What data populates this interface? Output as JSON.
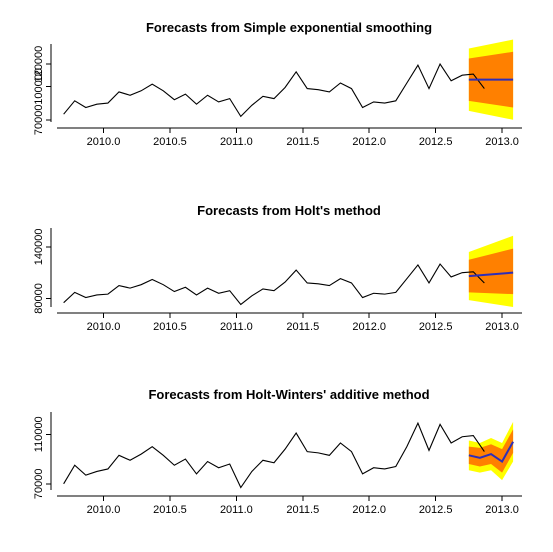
{
  "chart_data": [
    {
      "type": "line",
      "title": "Forecasts from Simple exponential smoothing",
      "xlabel": "",
      "ylabel": "",
      "xlim": [
        2009.65,
        2013.15
      ],
      "ylim": [
        68000,
        138000
      ],
      "x_ticks": [
        2010.0,
        2010.5,
        2011.0,
        2011.5,
        2012.0,
        2012.5,
        2013.0
      ],
      "x_tick_labels": [
        "2010.0",
        "2010.5",
        "2011.0",
        "2011.5",
        "2012.0",
        "2012.5",
        "2013.0"
      ],
      "y_ticks": [
        70000,
        100000,
        120000
      ],
      "y_tick_labels": [
        "70000",
        "100000",
        "120000"
      ],
      "colors": {
        "history": "#000000",
        "forecast": "#2e2eb8",
        "band80": "#ff8000",
        "band95": "#ffff00"
      },
      "series": [
        {
          "values": [
            75000,
            87000,
            81000,
            84000,
            85000,
            95000,
            92000,
            96000,
            102000,
            96000,
            88000,
            93000,
            84000,
            92000,
            86000,
            89000,
            73000,
            83000,
            91000,
            89000,
            99000,
            113000,
            98000,
            97000,
            95000,
            103000,
            98000,
            81000,
            86000,
            85000,
            87000,
            103000,
            119000,
            98000,
            120000,
            105000,
            110000,
            111000,
            98000
          ]
        },
        {
          "type": "forecast",
          "x": [
            2012.75,
            2013.083
          ],
          "mean": [
            106000,
            106000
          ],
          "lo80": [
            87000,
            81000
          ],
          "hi80": [
            125000,
            131000
          ],
          "lo95": [
            78000,
            70000
          ],
          "hi95": [
            134000,
            142000
          ]
        }
      ]
    },
    {
      "type": "line",
      "title": "Forecasts from Holt's method",
      "xlabel": "",
      "ylabel": "",
      "xlim": [
        2009.65,
        2013.15
      ],
      "ylim": [
        70000,
        162000
      ],
      "x_ticks": [
        2010.0,
        2010.5,
        2011.0,
        2011.5,
        2012.0,
        2012.5,
        2013.0
      ],
      "x_tick_labels": [
        "2010.0",
        "2010.5",
        "2011.0",
        "2011.5",
        "2012.0",
        "2012.5",
        "2013.0"
      ],
      "y_ticks": [
        80000,
        140000
      ],
      "y_tick_labels": [
        "80000",
        "140000"
      ],
      "colors": {
        "history": "#000000",
        "forecast": "#2e2eb8",
        "band80": "#ff8000",
        "band95": "#ffff00"
      },
      "series": [
        {
          "values": [
            75000,
            87000,
            81000,
            84000,
            85000,
            95000,
            92000,
            96000,
            102000,
            96000,
            88000,
            93000,
            84000,
            92000,
            86000,
            89000,
            73000,
            83000,
            91000,
            89000,
            99000,
            113000,
            98000,
            97000,
            95000,
            103000,
            98000,
            81000,
            86000,
            85000,
            87000,
            103000,
            119000,
            98000,
            120000,
            105000,
            110000,
            111000,
            98000
          ]
        },
        {
          "type": "forecast",
          "x": [
            2012.75,
            2013.083
          ],
          "mean": [
            106000,
            110000
          ],
          "lo80": [
            87000,
            85000
          ],
          "hi80": [
            125000,
            138000
          ],
          "lo95": [
            78000,
            70000
          ],
          "hi95": [
            134000,
            153000
          ]
        }
      ]
    },
    {
      "type": "line",
      "title": "Forecasts from Holt-Winters' additive method",
      "xlabel": "",
      "ylabel": "",
      "xlim": [
        2009.65,
        2013.15
      ],
      "ylim": [
        65000,
        128000
      ],
      "x_ticks": [
        2010.0,
        2010.5,
        2011.0,
        2011.5,
        2012.0,
        2012.5,
        2013.0
      ],
      "x_tick_labels": [
        "2010.0",
        "2010.5",
        "2011.0",
        "2011.5",
        "2012.0",
        "2012.5",
        "2013.0"
      ],
      "y_ticks": [
        70000,
        110000
      ],
      "y_tick_labels": [
        "70000",
        "110000"
      ],
      "colors": {
        "history": "#000000",
        "forecast": "#2e2eb8",
        "band80": "#ff8000",
        "band95": "#ffff00"
      },
      "series": [
        {
          "values": [
            70000,
            85000,
            77000,
            80000,
            82000,
            93000,
            89000,
            94000,
            100000,
            93000,
            85000,
            90000,
            78000,
            88000,
            83000,
            86000,
            67000,
            80000,
            89000,
            87000,
            98000,
            111000,
            96000,
            95000,
            93000,
            103000,
            96000,
            78000,
            83000,
            82000,
            84000,
            100000,
            119000,
            97000,
            118000,
            103000,
            108000,
            109000,
            96000
          ]
        },
        {
          "type": "forecast",
          "x": [
            2012.75,
            2012.833,
            2012.917,
            2013.0,
            2013.083
          ],
          "mean": [
            93000,
            91000,
            94000,
            88000,
            104000
          ],
          "lo80": [
            86000,
            84000,
            86000,
            79000,
            95000
          ],
          "hi80": [
            100000,
            99000,
            102000,
            98000,
            114000
          ],
          "lo95": [
            81000,
            79000,
            81000,
            73000,
            88000
          ],
          "hi95": [
            105000,
            103000,
            107000,
            103000,
            120000
          ]
        }
      ]
    }
  ]
}
